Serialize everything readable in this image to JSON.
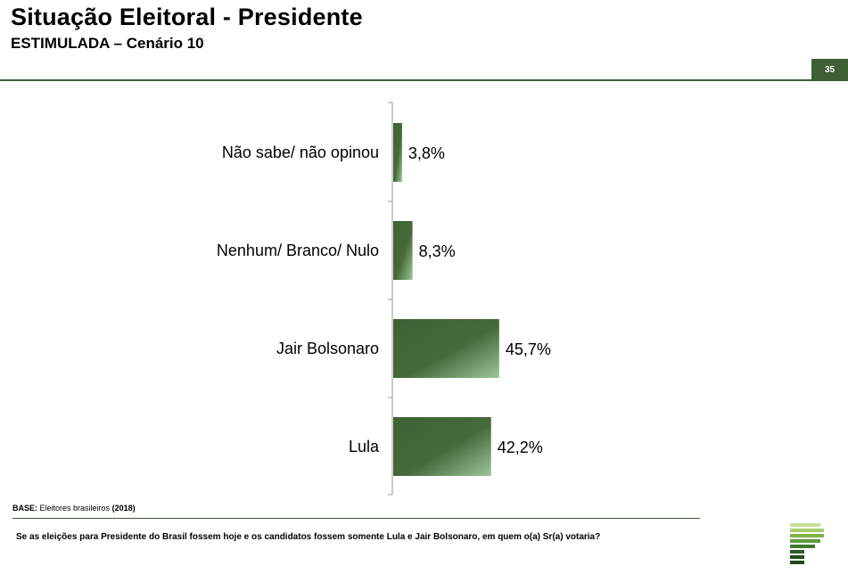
{
  "header": {
    "title": "Situação Eleitoral - Presidente",
    "subtitle": "ESTIMULADA – Cenário 10",
    "page_number": "35"
  },
  "chart_data": {
    "type": "bar",
    "orientation": "horizontal",
    "categories": [
      "Não sabe/ não opinou",
      "Nenhum/ Branco/ Nulo",
      "Jair Bolsonaro",
      "Lula"
    ],
    "values": [
      3.8,
      8.3,
      45.7,
      42.2
    ],
    "value_labels": [
      "3,8%",
      "8,3%",
      "45,7%",
      "42,2%"
    ],
    "unit": "%",
    "xlim": [
      0,
      100
    ],
    "grid": false,
    "legend": "none",
    "colors": {
      "bar_dark": "#3f6234",
      "bar_light": "#9cc799",
      "axis": "#999999"
    }
  },
  "footer": {
    "base_label": "BASE:",
    "base_text": "Eleitores brasileiros",
    "base_year": "(2018)",
    "question": "Se as eleições para Presidente do Brasil fossem hoje e os candidatos fossem somente Lula e Jair Bolsonaro, em quem o(a) Sr(a) votaria?"
  },
  "brand": {
    "logo_icon": "pollster-logo-icon",
    "logo_colors": [
      "#c9e29a",
      "#a8cf6a",
      "#7fb44a",
      "#5d9a3a",
      "#3f7a2e",
      "#2e5f25",
      "#234a1d"
    ]
  }
}
